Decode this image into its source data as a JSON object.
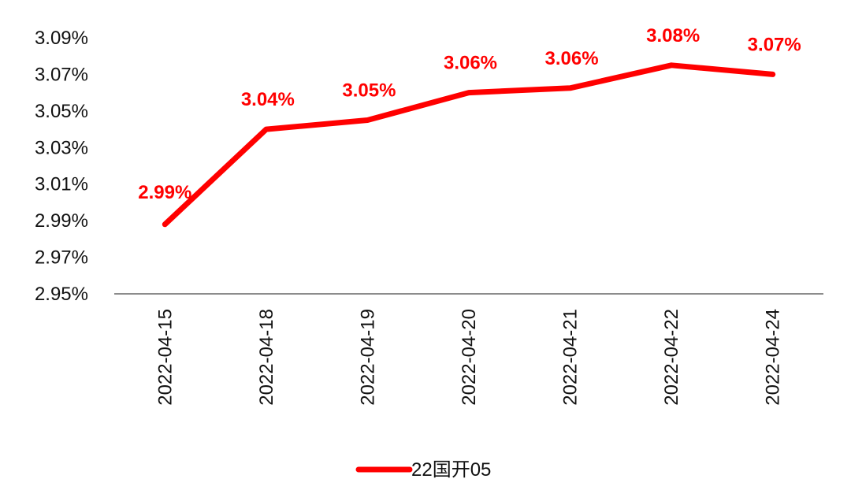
{
  "chart_data": {
    "type": "line",
    "categories": [
      "2022-04-15",
      "2022-04-18",
      "2022-04-19",
      "2022-04-20",
      "2022-04-21",
      "2022-04-22",
      "2022-04-24"
    ],
    "series": [
      {
        "name": "22国开05",
        "values": [
          2.988,
          3.04,
          3.045,
          3.06,
          3.0625,
          3.075,
          3.07
        ],
        "labels": [
          "2.99%",
          "3.04%",
          "3.05%",
          "3.06%",
          "3.06%",
          "3.08%",
          "3.07%"
        ],
        "color": "#ff0000"
      }
    ],
    "title": "",
    "xlabel": "",
    "ylabel": "",
    "ylim": [
      2.95,
      3.09
    ],
    "yticks": [
      "2.95%",
      "2.97%",
      "2.99%",
      "3.01%",
      "3.03%",
      "3.05%",
      "3.07%",
      "3.09%"
    ],
    "ytick_values": [
      2.95,
      2.97,
      2.99,
      3.01,
      3.03,
      3.05,
      3.07,
      3.09
    ],
    "grid": false,
    "legend_position": "bottom-center",
    "axis_color": "#8c8c8c",
    "label_color": "#ff0000"
  }
}
